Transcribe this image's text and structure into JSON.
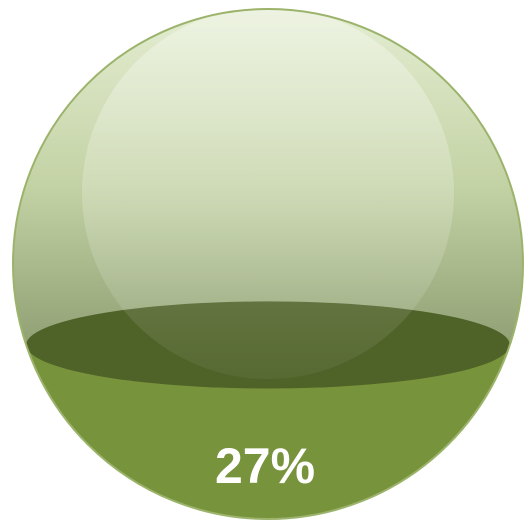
{
  "chart_data": {
    "type": "liquid-fill",
    "values": [
      27
    ],
    "value_labels": [
      "27%"
    ],
    "ylim": [
      0,
      100
    ],
    "color": "#77933c"
  }
}
